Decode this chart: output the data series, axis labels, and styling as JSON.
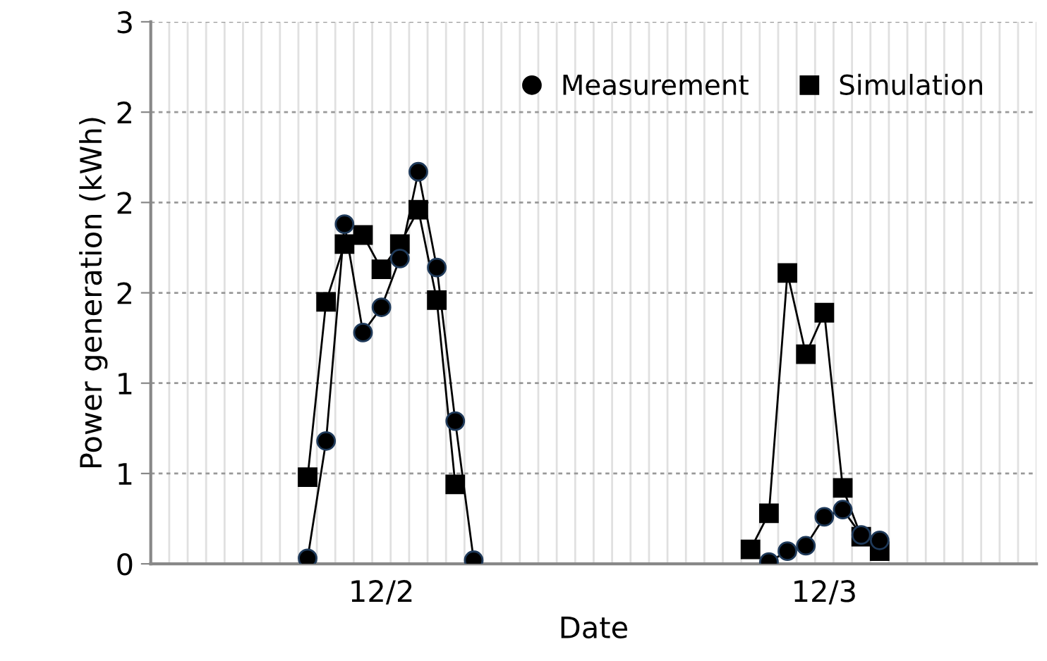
{
  "chart_data": {
    "type": "line",
    "xlabel": "Date",
    "ylabel": "Power generation (kWh)",
    "categories": [
      null,
      null,
      null,
      null,
      null,
      null,
      null,
      null,
      null,
      null,
      null,
      null,
      "12/2",
      null,
      null,
      null,
      null,
      null,
      null,
      null,
      null,
      null,
      null,
      null,
      null,
      null,
      null,
      null,
      null,
      null,
      null,
      null,
      null,
      null,
      null,
      null,
      "12/3",
      null,
      null,
      null,
      null,
      null,
      null,
      null,
      null,
      null,
      null,
      null
    ],
    "ylim": [
      0,
      3
    ],
    "yticks": [
      0,
      {
        "value": 0.5,
        "label": "1"
      },
      1,
      {
        "value": 1.5,
        "label": "2"
      },
      2,
      {
        "value": 2.5,
        "label": "2"
      },
      3
    ],
    "grid": true,
    "legend": "top right",
    "line_style": "solid",
    "series": [
      {
        "name": "Measurement",
        "color": "#000000",
        "marker": "circle",
        "values": [
          null,
          null,
          null,
          null,
          null,
          null,
          null,
          null,
          0.03,
          0.68,
          1.88,
          1.28,
          1.42,
          1.69,
          2.17,
          1.64,
          0.79,
          0.02,
          null,
          null,
          null,
          null,
          null,
          null,
          null,
          null,
          null,
          null,
          null,
          null,
          null,
          null,
          null,
          0.01,
          0.07,
          0.1,
          0.26,
          0.3,
          0.16,
          0.13,
          null,
          null,
          null,
          null,
          null,
          null,
          null,
          null
        ]
      },
      {
        "name": "Simulation",
        "color": "#000000",
        "marker": "square",
        "values": [
          null,
          null,
          null,
          null,
          null,
          null,
          null,
          null,
          0.48,
          1.45,
          1.77,
          1.82,
          1.63,
          1.77,
          1.96,
          1.46,
          0.44,
          null,
          null,
          null,
          null,
          null,
          null,
          null,
          null,
          null,
          null,
          null,
          null,
          null,
          null,
          null,
          0.08,
          0.28,
          1.61,
          1.16,
          1.39,
          0.42,
          0.15,
          0.07,
          null,
          null,
          null,
          null,
          null,
          null,
          null,
          null
        ]
      }
    ]
  }
}
